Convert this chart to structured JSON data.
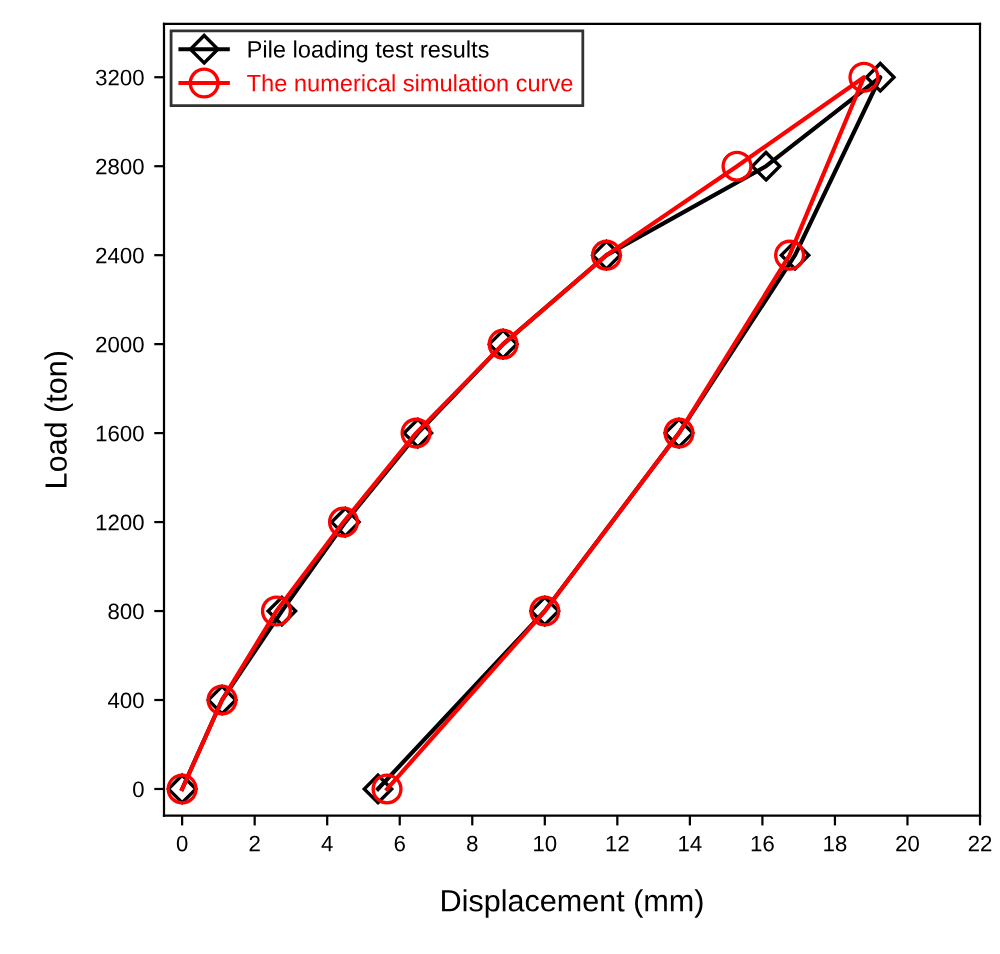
{
  "chart_data": {
    "type": "line",
    "xlabel": "Displacement (mm)",
    "ylabel": "Load (ton)",
    "xlim": [
      -0.5,
      22
    ],
    "xticks": [
      0,
      2,
      4,
      6,
      8,
      10,
      12,
      14,
      16,
      18,
      20,
      22
    ],
    "ylim": [
      -120,
      3440
    ],
    "yticks": [
      0,
      400,
      800,
      1200,
      1600,
      2000,
      2400,
      2800,
      3200
    ],
    "grid": false,
    "legend": "top left",
    "series": [
      {
        "name": "Pile loading test results",
        "color": "#000000",
        "marker": "diamond",
        "x": [
          0,
          1.1,
          2.75,
          4.5,
          6.5,
          8.85,
          11.7,
          16.1,
          19.25,
          16.9,
          13.7,
          10.0,
          5.4
        ],
        "values": [
          0,
          400,
          800,
          1200,
          1600,
          2000,
          2400,
          2800,
          3200,
          2400,
          1600,
          800,
          0
        ]
      },
      {
        "name": "The numerical simulation curve",
        "color": "#ff0000",
        "marker": "circle",
        "x": [
          0,
          1.1,
          2.6,
          4.45,
          6.45,
          8.85,
          11.7,
          15.3,
          18.8,
          16.75,
          13.7,
          10.0,
          5.65
        ],
        "values": [
          0,
          400,
          800,
          1200,
          1600,
          2000,
          2400,
          2800,
          3200,
          2400,
          1600,
          800,
          0
        ]
      }
    ]
  }
}
